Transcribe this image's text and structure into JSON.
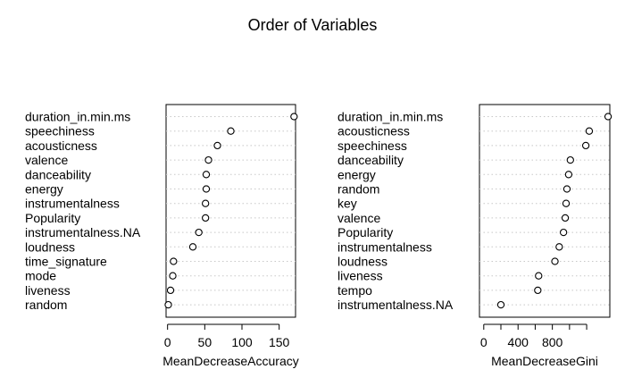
{
  "title": "Order of Variables",
  "chart_data": [
    {
      "type": "dotchart",
      "xlabel": "MeanDecreaseAccuracy",
      "xlim": [
        -2,
        172
      ],
      "xticks": [
        0,
        50,
        100,
        150
      ],
      "grid": "dotted horizontal",
      "labels": [
        "duration_in.min.ms",
        "speechiness",
        "acousticness",
        "valence",
        "danceability",
        "energy",
        "instrumentalness",
        "Popularity",
        "instrumentalness.NA",
        "loudness",
        "time_signature",
        "mode",
        "liveness",
        "random"
      ],
      "values": [
        170,
        85,
        67,
        55,
        52,
        52,
        51,
        51,
        42,
        34,
        8,
        7,
        4,
        1
      ]
    },
    {
      "type": "dotchart",
      "xlabel": "MeanDecreaseGini",
      "xlim": [
        -50,
        1470
      ],
      "xticks": [
        0,
        400,
        800
      ],
      "grid": "dotted horizontal",
      "labels": [
        "duration_in.min.ms",
        "acousticness",
        "speechiness",
        "danceability",
        "energy",
        "random",
        "key",
        "valence",
        "Popularity",
        "instrumentalness",
        "loudness",
        "liveness",
        "tempo",
        "instrumentalness.NA"
      ],
      "values": [
        1450,
        1230,
        1190,
        1010,
        990,
        970,
        960,
        950,
        930,
        880,
        830,
        640,
        630,
        200
      ]
    }
  ]
}
